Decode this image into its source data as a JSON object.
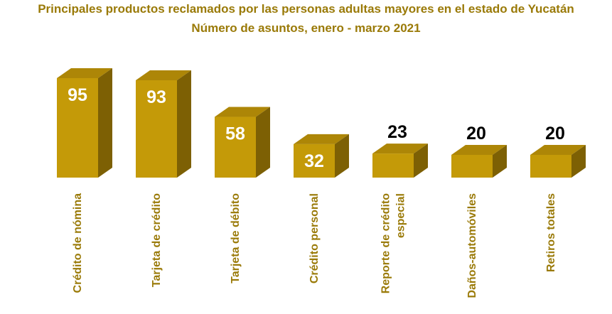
{
  "chart_data": {
    "type": "bar",
    "title": "Principales productos reclamados por las personas adultas mayores en el estado de Yucatán",
    "subtitle": "Número de asuntos, enero - marzo 2021",
    "categories": [
      [
        "Crédito de nómina"
      ],
      [
        "Tarjeta de crédito"
      ],
      [
        "Tarjeta de débito"
      ],
      [
        "Crédito personal"
      ],
      [
        "Reporte de crédito",
        "especial"
      ],
      [
        "Daños-automóviles"
      ],
      [
        "Retiros totales"
      ]
    ],
    "values": [
      95,
      93,
      58,
      32,
      23,
      20,
      20
    ],
    "value_labels": [
      "95",
      "93",
      "58",
      "32",
      "23",
      "20",
      "20"
    ],
    "ylim": [
      0,
      95
    ],
    "xlabel": "",
    "ylabel": "",
    "grid": false,
    "colors": {
      "front": "#c49a08",
      "top": "#ad8607",
      "side": "#7d6004",
      "title": "#9a7a08"
    }
  }
}
